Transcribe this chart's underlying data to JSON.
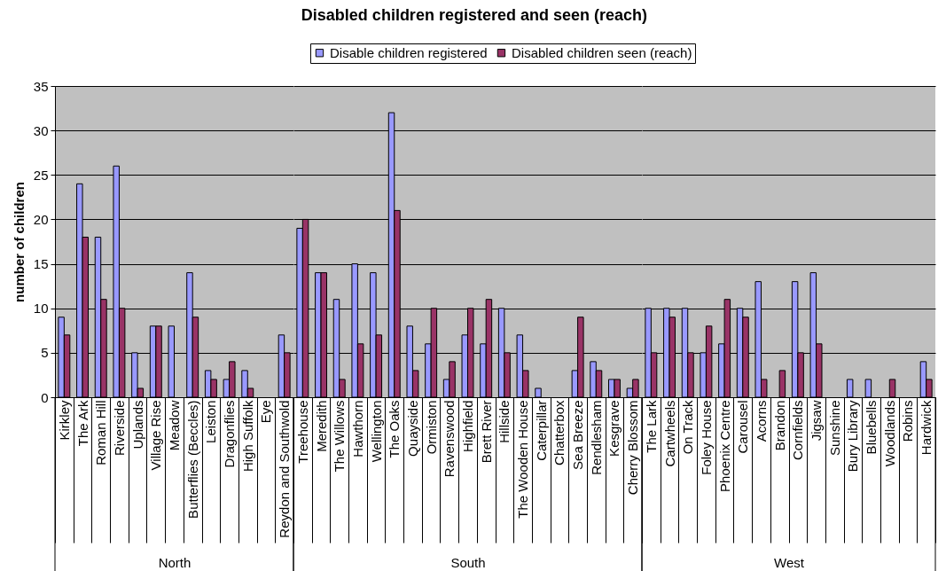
{
  "chart_data": [
    {
      "type": "bar",
      "ylabel": "number of children",
      "xlabel": "North",
      "categories": [
        "Kirkley",
        "The Ark",
        "Roman Hill",
        "Riverside",
        "Uplands",
        "Village Rise",
        "Meadow",
        "Butterflies (Beccles)",
        "Leiston",
        "Dragonflies",
        "High Suffolk",
        "Eye",
        "Reydon and Southwold"
      ],
      "series": [
        {
          "name": "Disable children registered",
          "color": "#9999ff",
          "values": [
            9,
            24,
            18,
            26,
            5,
            8,
            8,
            14,
            3,
            2,
            3,
            null,
            7
          ]
        },
        {
          "name": "Disabled children seen (reach)",
          "color": "#993366",
          "values": [
            7,
            18,
            11,
            10,
            1,
            8,
            null,
            9,
            2,
            4,
            1,
            null,
            5
          ]
        }
      ],
      "ylim": [
        0,
        35
      ],
      "yticks": [
        0,
        5,
        10,
        15,
        20,
        25,
        30,
        35
      ],
      "grid": "y",
      "legend": "top"
    },
    {
      "type": "bar",
      "title": "Disabled children registered and seen (reach)",
      "xlabel": "South",
      "categories": [
        "Treehouse",
        "Meredith",
        "The Willows",
        "Hawthorn",
        "Wellington",
        "The Oaks",
        "Quayside",
        "Ormiston",
        "Ravenswood",
        "Highfield",
        "Brett River",
        "Hillside",
        "The Wooden House",
        "Caterpillar",
        "Chatterbox",
        "Sea Breeze",
        "Rendlesham",
        "Kesgrave",
        "Cherry Blossom"
      ],
      "series": [
        {
          "color": "#9999ff",
          "values": [
            19,
            14,
            11,
            15,
            14,
            32,
            8,
            6,
            2,
            7,
            6,
            10,
            7,
            1,
            null,
            3,
            4,
            2,
            1
          ]
        },
        {
          "color": "#993366",
          "values": [
            20,
            14,
            2,
            6,
            7,
            21,
            3,
            10,
            4,
            10,
            11,
            5,
            3,
            null,
            null,
            9,
            3,
            2,
            2
          ]
        }
      ],
      "ylim": [
        0,
        35
      ],
      "yticks": [
        0,
        5,
        10,
        15,
        20,
        25,
        30,
        35
      ],
      "grid": "y",
      "tick_labels": "x"
    },
    {
      "type": "bar",
      "xlabel": "West",
      "categories": [
        "The Lark",
        "Cartwheels",
        "On Track",
        "Foley House",
        "Phoenix Centre",
        "Carousel",
        "Acorns",
        "Brandon",
        "Cornfields",
        "Jigsaw",
        "Sunshine",
        "Bury Library",
        "Bluebells",
        "Woodlands",
        "Robins",
        "Hardwick"
      ],
      "series": [
        {
          "color": "#9999ff",
          "values": [
            10,
            10,
            10,
            5,
            6,
            10,
            13,
            null,
            13,
            14,
            null,
            2,
            2,
            null,
            null,
            4
          ]
        },
        {
          "color": "#993366",
          "values": [
            5,
            9,
            5,
            8,
            11,
            9,
            2,
            3,
            5,
            6,
            null,
            null,
            null,
            2,
            null,
            2
          ]
        }
      ],
      "ylim": [
        0,
        35
      ],
      "yticks": [
        0,
        5,
        10,
        15,
        20,
        25,
        30,
        35
      ],
      "grid": "y",
      "tick_labels": "x"
    }
  ]
}
